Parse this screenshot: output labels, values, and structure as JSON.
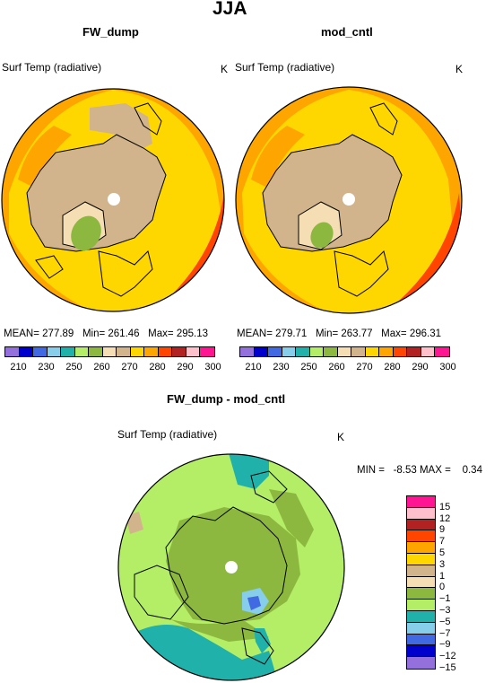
{
  "figure_title": "JJA",
  "panels": [
    {
      "title": "FW_dump",
      "variable": "Surf Temp (radiative)",
      "units": "K",
      "stats": {
        "mean_label": "MEAN=",
        "mean": "277.89",
        "min_label": "Min=",
        "min": "261.46",
        "max_label": "Max=",
        "max": "295.13"
      }
    },
    {
      "title": "mod_cntl",
      "variable": "Surf Temp (radiative)",
      "units": "K",
      "stats": {
        "mean_label": "MEAN=",
        "mean": "279.71",
        "min_label": "Min=",
        "min": "263.77",
        "max_label": "Max=",
        "max": "296.31"
      }
    },
    {
      "title": "FW_dump - mod_cntl",
      "variable": "Surf Temp (radiative)",
      "units": "K",
      "minmax": "MIN =   -8.53 MAX =    0.34"
    }
  ],
  "abs_colorbar": {
    "colors": [
      "#9370db",
      "#0000cd",
      "#4169e1",
      "#87ceeb",
      "#20b2aa",
      "#b4ee66",
      "#8db83f",
      "#f5deb3",
      "#d2b48c",
      "#ffd700",
      "#ffa500",
      "#ff4500",
      "#b22222",
      "#ffc0cb",
      "#ff1493"
    ],
    "tick_labels": [
      "210",
      "230",
      "250",
      "260",
      "270",
      "280",
      "290",
      "300"
    ]
  },
  "diff_colorbar": {
    "colors_top_to_bottom": [
      "#ff1493",
      "#ffc0cb",
      "#b22222",
      "#ff4500",
      "#ffa500",
      "#ffd700",
      "#d2b48c",
      "#f5deb3",
      "#8db83f",
      "#b4ee66",
      "#20b2aa",
      "#87ceeb",
      "#4169e1",
      "#0000cd",
      "#9370db"
    ],
    "tick_labels": [
      "15",
      "12",
      "9",
      "7",
      "5",
      "3",
      "1",
      "0",
      "−1",
      "−3",
      "−5",
      "−7",
      "−9",
      "−12",
      "−15"
    ]
  },
  "colors": {
    "ocean_fill": "#ffd700",
    "land_fill": "#d2b48c",
    "warm_fill": "#ffa500",
    "hot_fill": "#ff4500",
    "diff_base": "#b4ee66",
    "diff_land": "#8db83f",
    "diff_cool": "#20b2aa"
  }
}
